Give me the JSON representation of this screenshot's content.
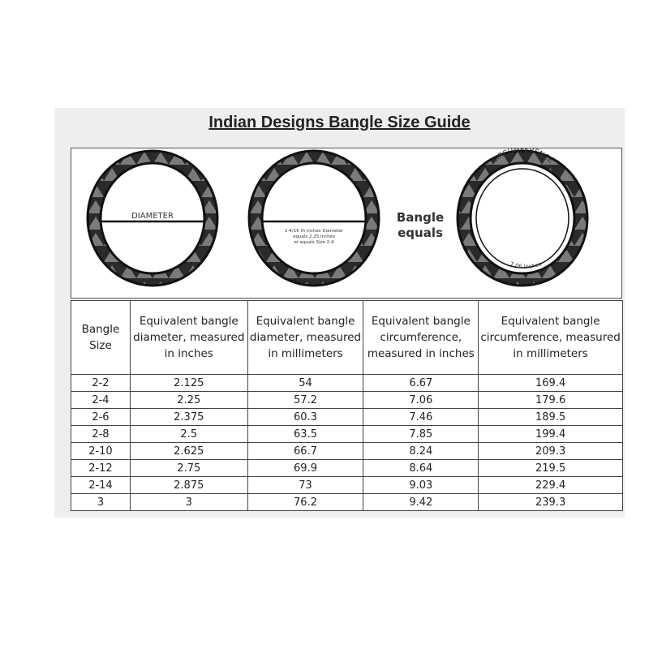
{
  "title": "Indian Designs Bangle Size Guide",
  "figure": {
    "diameter_label": "DIAMETER",
    "example_lines": [
      "2-4/16 th inches Diameter",
      "equals 2.25 Inches",
      "or equals Size 2-4"
    ],
    "equals_lines": [
      "Bangle",
      "equals"
    ],
    "circumference_label": "CIRCUMFERENCE",
    "circumference_value": "7.06 inches"
  },
  "table": {
    "headers": [
      "Bangle Size",
      "Equivalent bangle diameter, measured in inches",
      "Equivalent bangle diameter, measured in millimeters",
      "Equivalent bangle circumference, measured in inches",
      "Equivalent bangle circumference, measured in millimeters"
    ],
    "rows": [
      [
        "2-2",
        "2.125",
        "54",
        "6.67",
        "169.4"
      ],
      [
        "2-4",
        "2.25",
        "57.2",
        "7.06",
        "179.6"
      ],
      [
        "2-6",
        "2.375",
        "60.3",
        "7.46",
        "189.5"
      ],
      [
        "2-8",
        "2.5",
        "63.5",
        "7.85",
        "199.4"
      ],
      [
        "2-10",
        "2.625",
        "66.7",
        "8.24",
        "209.3"
      ],
      [
        "2-12",
        "2.75",
        "69.9",
        "8.64",
        "219.5"
      ],
      [
        "2-14",
        "2.875",
        "73",
        "9.03",
        "229.4"
      ],
      [
        "3",
        "3",
        "76.2",
        "9.42",
        "239.3"
      ]
    ]
  }
}
